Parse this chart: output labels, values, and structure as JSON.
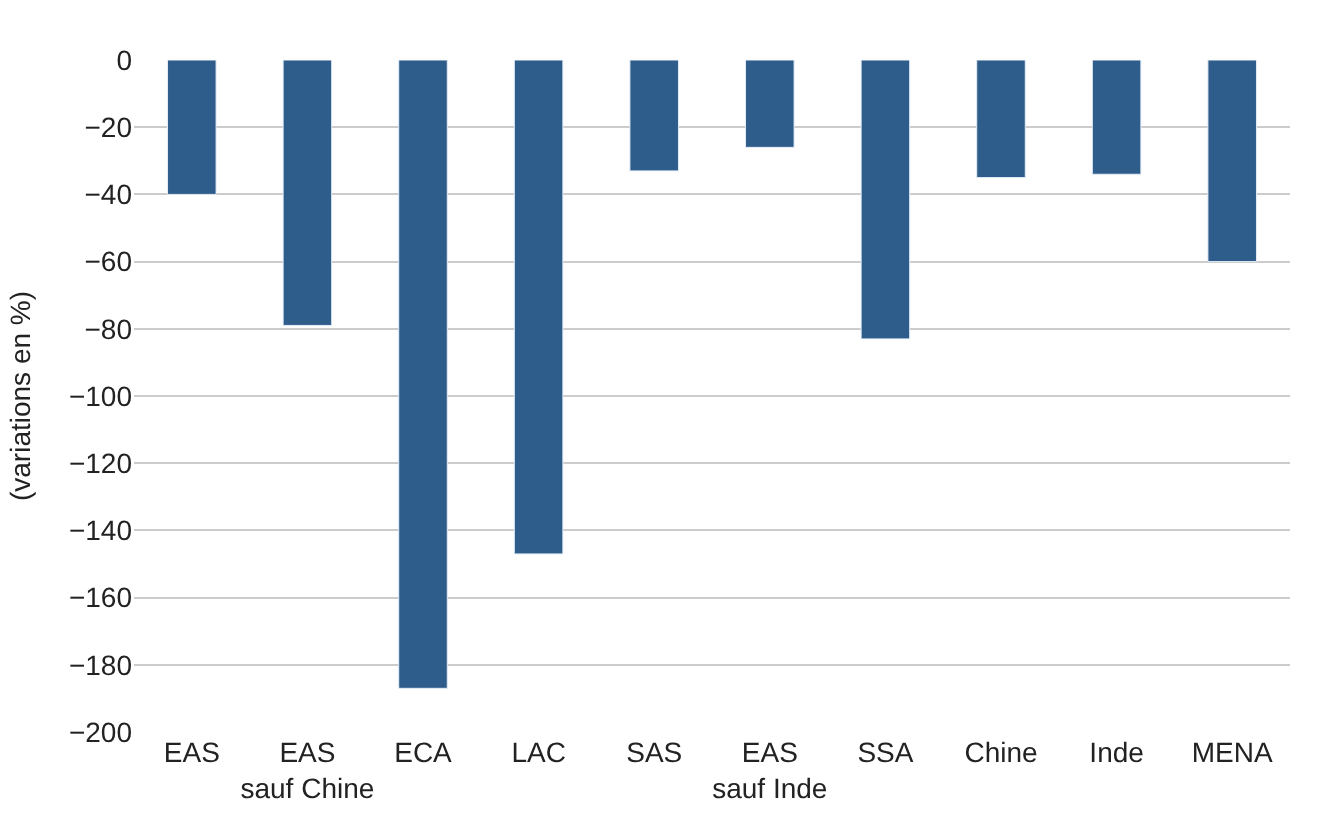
{
  "chart_data": {
    "type": "bar",
    "ylabel": "(variations en %)",
    "categories": [
      "EAS",
      "EAS\nsauf Chine",
      "ECA",
      "LAC",
      "SAS",
      "EAS\nsauf Inde",
      "SSA",
      "Chine",
      "Inde",
      "MENA"
    ],
    "values": [
      -40,
      -79,
      -187,
      -147,
      -33,
      -26,
      -83,
      -35,
      -34,
      -60
    ],
    "color": "#2e5d8c",
    "ylim": [
      -200,
      0
    ],
    "yticks": [
      {
        "value": -200,
        "label": "−200"
      },
      {
        "value": -180,
        "label": "−180"
      },
      {
        "value": -160,
        "label": "−160"
      },
      {
        "value": -140,
        "label": "−140"
      },
      {
        "value": -120,
        "label": "−120"
      },
      {
        "value": -100,
        "label": "−100"
      },
      {
        "value": -80,
        "label": "−80"
      },
      {
        "value": -60,
        "label": "−60"
      },
      {
        "value": -40,
        "label": "−40"
      },
      {
        "value": -20,
        "label": "−20"
      },
      0
    ],
    "grid": "y",
    "legend": false
  }
}
